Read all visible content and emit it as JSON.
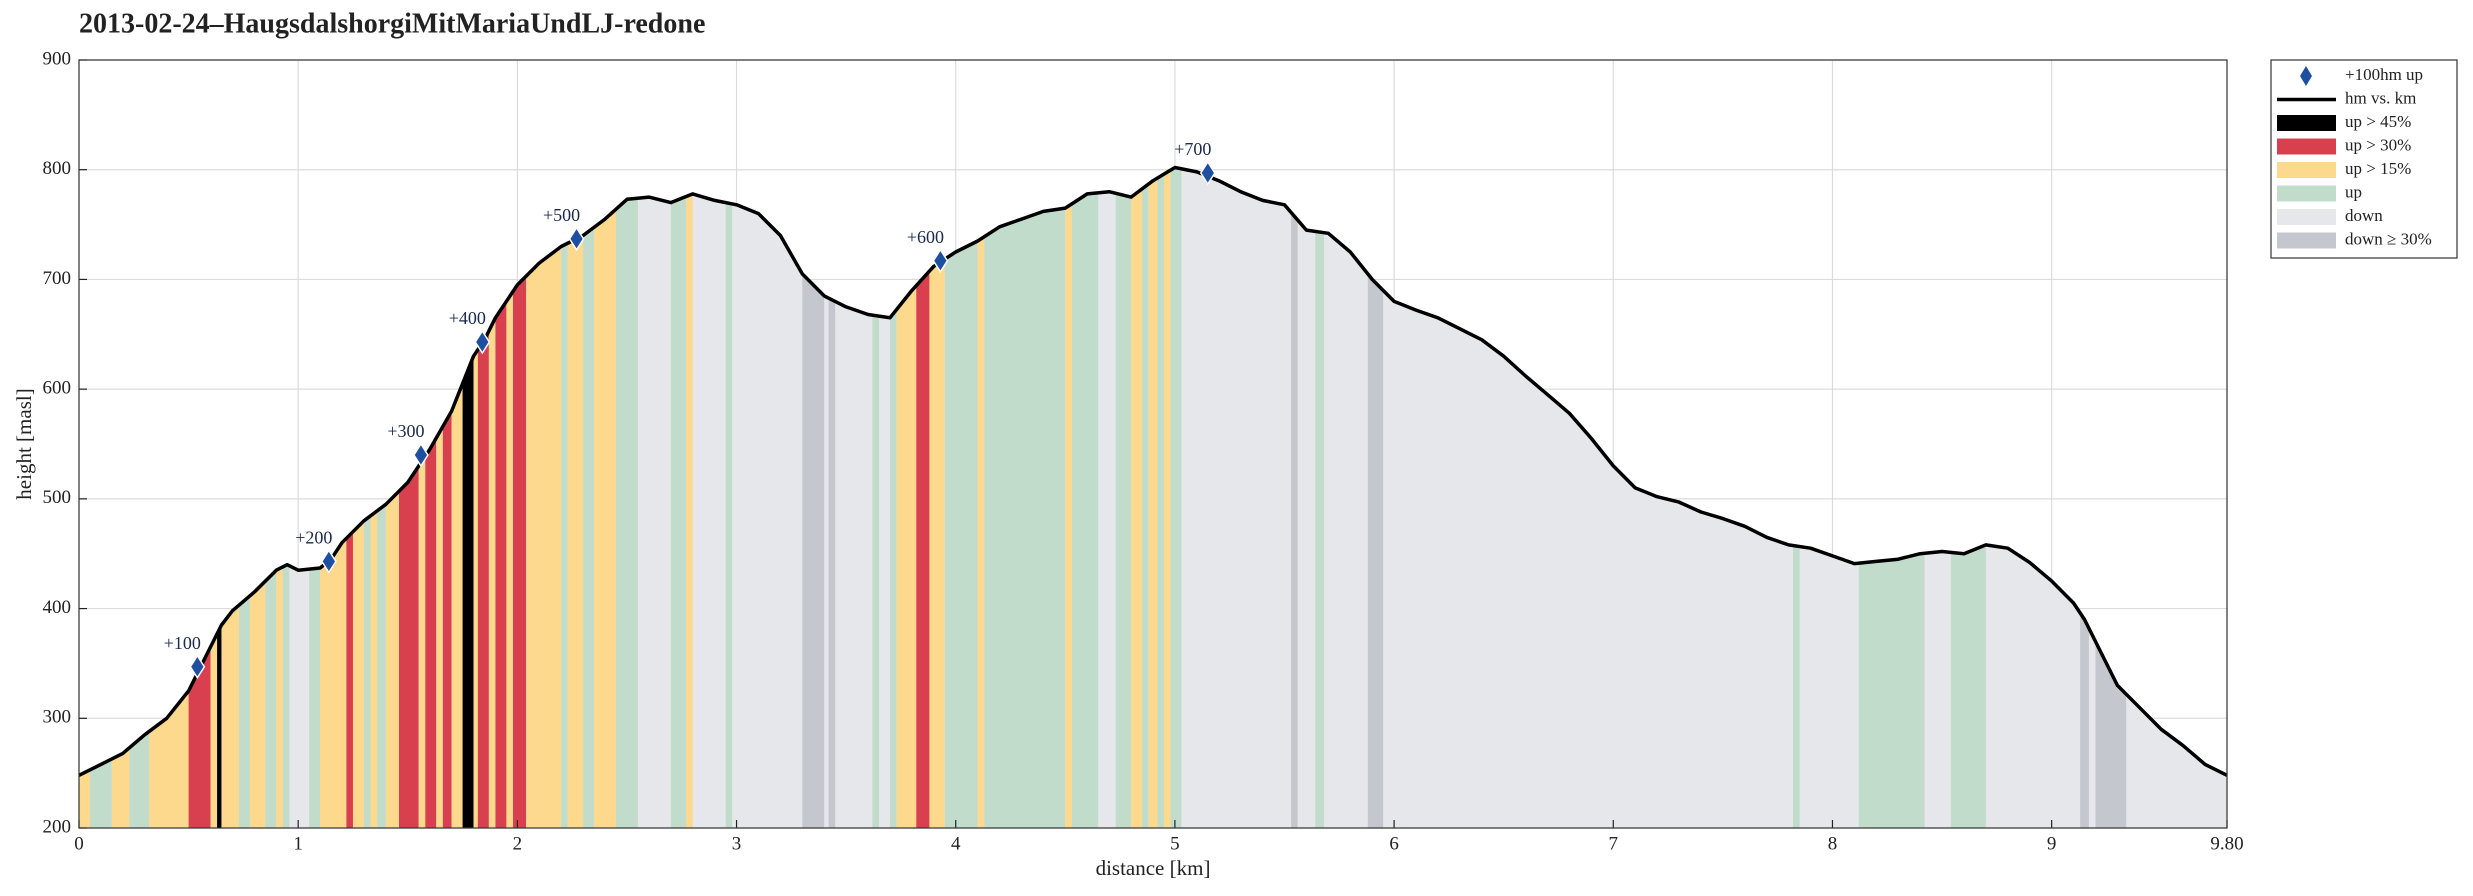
{
  "chart_data": {
    "type": "area",
    "title": "2013-02-24–HaugsdalshorgiMitMariaUndLJ-redone",
    "xlabel": "distance [km]",
    "ylabel": "height [masl]",
    "xlim": [
      0,
      9.8
    ],
    "ylim": [
      200,
      900
    ],
    "xticks": [
      0,
      1,
      2,
      3,
      4,
      5,
      6,
      7,
      8,
      9,
      {
        "value": 9.8,
        "label": "9.80"
      }
    ],
    "yticks": [
      200,
      300,
      400,
      500,
      600,
      700,
      800,
      900
    ],
    "grid": true,
    "legend": "outside-top-right",
    "series": [
      {
        "name": "+100hm up",
        "color": "#1f4fa0",
        "x": [
          0.54,
          1.14,
          1.56,
          1.84,
          2.27,
          3.93,
          5.15
        ],
        "values": [
          347,
          443,
          540,
          643,
          737,
          717,
          797
        ],
        "labels": [
          "+100",
          "+200",
          "+300",
          "+400",
          "+500",
          "+600",
          "+700"
        ]
      },
      {
        "name": "hm vs. km",
        "color": "#000000",
        "x": [
          0,
          0.1,
          0.2,
          0.3,
          0.4,
          0.5,
          0.55,
          0.6,
          0.65,
          0.7,
          0.8,
          0.9,
          0.95,
          1.0,
          1.1,
          1.15,
          1.2,
          1.3,
          1.4,
          1.5,
          1.6,
          1.7,
          1.8,
          1.85,
          1.9,
          2.0,
          2.1,
          2.2,
          2.3,
          2.4,
          2.5,
          2.6,
          2.7,
          2.8,
          2.9,
          3.0,
          3.1,
          3.2,
          3.3,
          3.4,
          3.5,
          3.6,
          3.7,
          3.8,
          3.9,
          4.0,
          4.1,
          4.2,
          4.3,
          4.4,
          4.5,
          4.6,
          4.7,
          4.8,
          4.9,
          5.0,
          5.1,
          5.2,
          5.3,
          5.4,
          5.5,
          5.6,
          5.7,
          5.8,
          5.9,
          6.0,
          6.1,
          6.2,
          6.3,
          6.4,
          6.5,
          6.6,
          6.7,
          6.8,
          6.9,
          7.0,
          7.1,
          7.2,
          7.3,
          7.4,
          7.5,
          7.6,
          7.7,
          7.8,
          7.9,
          8.0,
          8.1,
          8.2,
          8.3,
          8.4,
          8.5,
          8.6,
          8.7,
          8.8,
          8.9,
          9.0,
          9.1,
          9.15,
          9.2,
          9.3,
          9.4,
          9.5,
          9.6,
          9.7,
          9.8
        ],
        "values": [
          248,
          258,
          268,
          285,
          300,
          325,
          345,
          365,
          385,
          398,
          415,
          435,
          440,
          435,
          437,
          445,
          460,
          480,
          495,
          515,
          545,
          580,
          630,
          645,
          665,
          695,
          715,
          730,
          740,
          755,
          773,
          775,
          770,
          778,
          772,
          768,
          760,
          740,
          705,
          685,
          675,
          668,
          665,
          690,
          712,
          725,
          735,
          748,
          755,
          762,
          765,
          778,
          780,
          775,
          790,
          802,
          798,
          790,
          780,
          772,
          768,
          745,
          742,
          725,
          700,
          680,
          672,
          665,
          655,
          645,
          630,
          612,
          595,
          578,
          555,
          530,
          510,
          502,
          497,
          488,
          482,
          475,
          465,
          458,
          455,
          448,
          441,
          443,
          445,
          450,
          452,
          450,
          458,
          455,
          442,
          425,
          405,
          390,
          370,
          330,
          310,
          290,
          275,
          258,
          248
        ]
      }
    ],
    "bands": {
      "classes": [
        {
          "name": "up > 45%",
          "color": "#000000"
        },
        {
          "name": "up > 30%",
          "color": "#d9404f"
        },
        {
          "name": "up > 15%",
          "color": "#fcd98c"
        },
        {
          "name": "up",
          "color": "#c2dccc"
        },
        {
          "name": "down",
          "color": "#e6e7ea"
        },
        {
          "name": "down ≥ 30%",
          "color": "#c5c7ce"
        }
      ],
      "items": [
        {
          "x0": 0,
          "x1": 0.05,
          "cls": 2
        },
        {
          "x0": 0.05,
          "x1": 0.15,
          "cls": 3
        },
        {
          "x0": 0.15,
          "x1": 0.23,
          "cls": 2
        },
        {
          "x0": 0.23,
          "x1": 0.32,
          "cls": 3
        },
        {
          "x0": 0.32,
          "x1": 0.5,
          "cls": 2
        },
        {
          "x0": 0.5,
          "x1": 0.6,
          "cls": 1
        },
        {
          "x0": 0.6,
          "x1": 0.63,
          "cls": 2
        },
        {
          "x0": 0.63,
          "x1": 0.65,
          "cls": 0
        },
        {
          "x0": 0.65,
          "x1": 0.73,
          "cls": 2
        },
        {
          "x0": 0.73,
          "x1": 0.78,
          "cls": 3
        },
        {
          "x0": 0.78,
          "x1": 0.85,
          "cls": 2
        },
        {
          "x0": 0.85,
          "x1": 0.9,
          "cls": 3
        },
        {
          "x0": 0.9,
          "x1": 0.93,
          "cls": 2
        },
        {
          "x0": 0.93,
          "x1": 0.96,
          "cls": 3
        },
        {
          "x0": 1.05,
          "x1": 1.1,
          "cls": 3
        },
        {
          "x0": 1.1,
          "x1": 1.22,
          "cls": 2
        },
        {
          "x0": 1.22,
          "x1": 1.25,
          "cls": 1
        },
        {
          "x0": 1.25,
          "x1": 1.3,
          "cls": 2
        },
        {
          "x0": 1.3,
          "x1": 1.33,
          "cls": 3
        },
        {
          "x0": 1.33,
          "x1": 1.36,
          "cls": 2
        },
        {
          "x0": 1.36,
          "x1": 1.4,
          "cls": 3
        },
        {
          "x0": 1.4,
          "x1": 1.46,
          "cls": 2
        },
        {
          "x0": 1.46,
          "x1": 1.55,
          "cls": 1
        },
        {
          "x0": 1.55,
          "x1": 1.58,
          "cls": 2
        },
        {
          "x0": 1.58,
          "x1": 1.63,
          "cls": 1
        },
        {
          "x0": 1.63,
          "x1": 1.66,
          "cls": 2
        },
        {
          "x0": 1.66,
          "x1": 1.7,
          "cls": 1
        },
        {
          "x0": 1.7,
          "x1": 1.75,
          "cls": 2
        },
        {
          "x0": 1.75,
          "x1": 1.8,
          "cls": 0
        },
        {
          "x0": 1.8,
          "x1": 1.82,
          "cls": 2
        },
        {
          "x0": 1.82,
          "x1": 1.87,
          "cls": 1
        },
        {
          "x0": 1.87,
          "x1": 1.9,
          "cls": 2
        },
        {
          "x0": 1.9,
          "x1": 1.95,
          "cls": 1
        },
        {
          "x0": 1.95,
          "x1": 1.98,
          "cls": 2
        },
        {
          "x0": 1.98,
          "x1": 2.04,
          "cls": 1
        },
        {
          "x0": 2.04,
          "x1": 2.2,
          "cls": 2
        },
        {
          "x0": 2.2,
          "x1": 2.23,
          "cls": 3
        },
        {
          "x0": 2.23,
          "x1": 2.3,
          "cls": 2
        },
        {
          "x0": 2.3,
          "x1": 2.35,
          "cls": 3
        },
        {
          "x0": 2.35,
          "x1": 2.45,
          "cls": 2
        },
        {
          "x0": 2.45,
          "x1": 2.55,
          "cls": 3
        },
        {
          "x0": 2.7,
          "x1": 2.77,
          "cls": 3
        },
        {
          "x0": 2.77,
          "x1": 2.8,
          "cls": 2
        },
        {
          "x0": 2.95,
          "x1": 2.98,
          "cls": 3
        },
        {
          "x0": 3.3,
          "x1": 3.4,
          "cls": 5
        },
        {
          "x0": 3.42,
          "x1": 3.45,
          "cls": 5
        },
        {
          "x0": 3.62,
          "x1": 3.65,
          "cls": 3
        },
        {
          "x0": 3.7,
          "x1": 3.73,
          "cls": 3
        },
        {
          "x0": 3.73,
          "x1": 3.82,
          "cls": 2
        },
        {
          "x0": 3.82,
          "x1": 3.88,
          "cls": 1
        },
        {
          "x0": 3.88,
          "x1": 3.95,
          "cls": 2
        },
        {
          "x0": 3.95,
          "x1": 4.1,
          "cls": 3
        },
        {
          "x0": 4.1,
          "x1": 4.13,
          "cls": 2
        },
        {
          "x0": 4.13,
          "x1": 4.5,
          "cls": 3
        },
        {
          "x0": 4.5,
          "x1": 4.53,
          "cls": 2
        },
        {
          "x0": 4.53,
          "x1": 4.65,
          "cls": 3
        },
        {
          "x0": 4.73,
          "x1": 4.8,
          "cls": 3
        },
        {
          "x0": 4.8,
          "x1": 4.85,
          "cls": 2
        },
        {
          "x0": 4.85,
          "x1": 4.88,
          "cls": 3
        },
        {
          "x0": 4.88,
          "x1": 4.92,
          "cls": 2
        },
        {
          "x0": 4.92,
          "x1": 4.95,
          "cls": 3
        },
        {
          "x0": 4.95,
          "x1": 4.98,
          "cls": 2
        },
        {
          "x0": 4.98,
          "x1": 5.03,
          "cls": 3
        },
        {
          "x0": 5.53,
          "x1": 5.56,
          "cls": 5
        },
        {
          "x0": 5.64,
          "x1": 5.68,
          "cls": 3
        },
        {
          "x0": 5.88,
          "x1": 5.95,
          "cls": 5
        },
        {
          "x0": 7.82,
          "x1": 7.85,
          "cls": 3
        },
        {
          "x0": 8.12,
          "x1": 8.42,
          "cls": 3
        },
        {
          "x0": 8.54,
          "x1": 8.7,
          "cls": 3
        },
        {
          "x0": 9.13,
          "x1": 9.17,
          "cls": 5
        },
        {
          "x0": 9.2,
          "x1": 9.34,
          "cls": 5
        }
      ]
    }
  }
}
